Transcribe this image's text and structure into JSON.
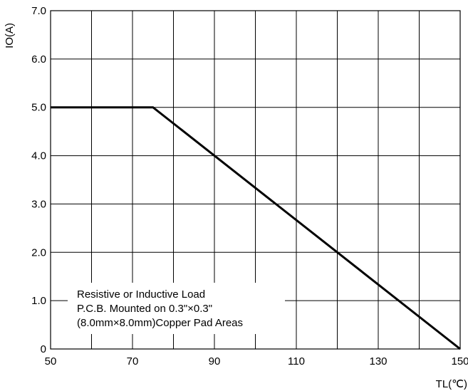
{
  "chart_data": {
    "type": "line",
    "title": "",
    "xlabel": "TL(℃)",
    "ylabel": "IO(A)",
    "xlim": [
      50,
      150
    ],
    "ylim": [
      0,
      7
    ],
    "x_tick_labels": [
      "50",
      "70",
      "90",
      "110",
      "130",
      "150"
    ],
    "y_tick_labels": [
      "0",
      "1.0",
      "2.0",
      "3.0",
      "4.0",
      "5.0",
      "6.0",
      "7.0"
    ],
    "x_gridlines": [
      50,
      60,
      70,
      80,
      90,
      100,
      110,
      120,
      130,
      140,
      150
    ],
    "y_gridlines": [
      0,
      1,
      2,
      3,
      4,
      5,
      6,
      7
    ],
    "grid": true,
    "series": [
      {
        "x": [
          50,
          75,
          150
        ],
        "y": [
          5.0,
          5.0,
          0
        ]
      }
    ],
    "annotation": [
      "Resistive or Inductive Load",
      "P.C.B. Mounted on 0.3\"×0.3\"",
      "(8.0mm×8.0mm)Copper Pad Areas"
    ],
    "colors": {
      "line": "#000000",
      "grid": "#000000",
      "background": "#ffffff"
    }
  }
}
